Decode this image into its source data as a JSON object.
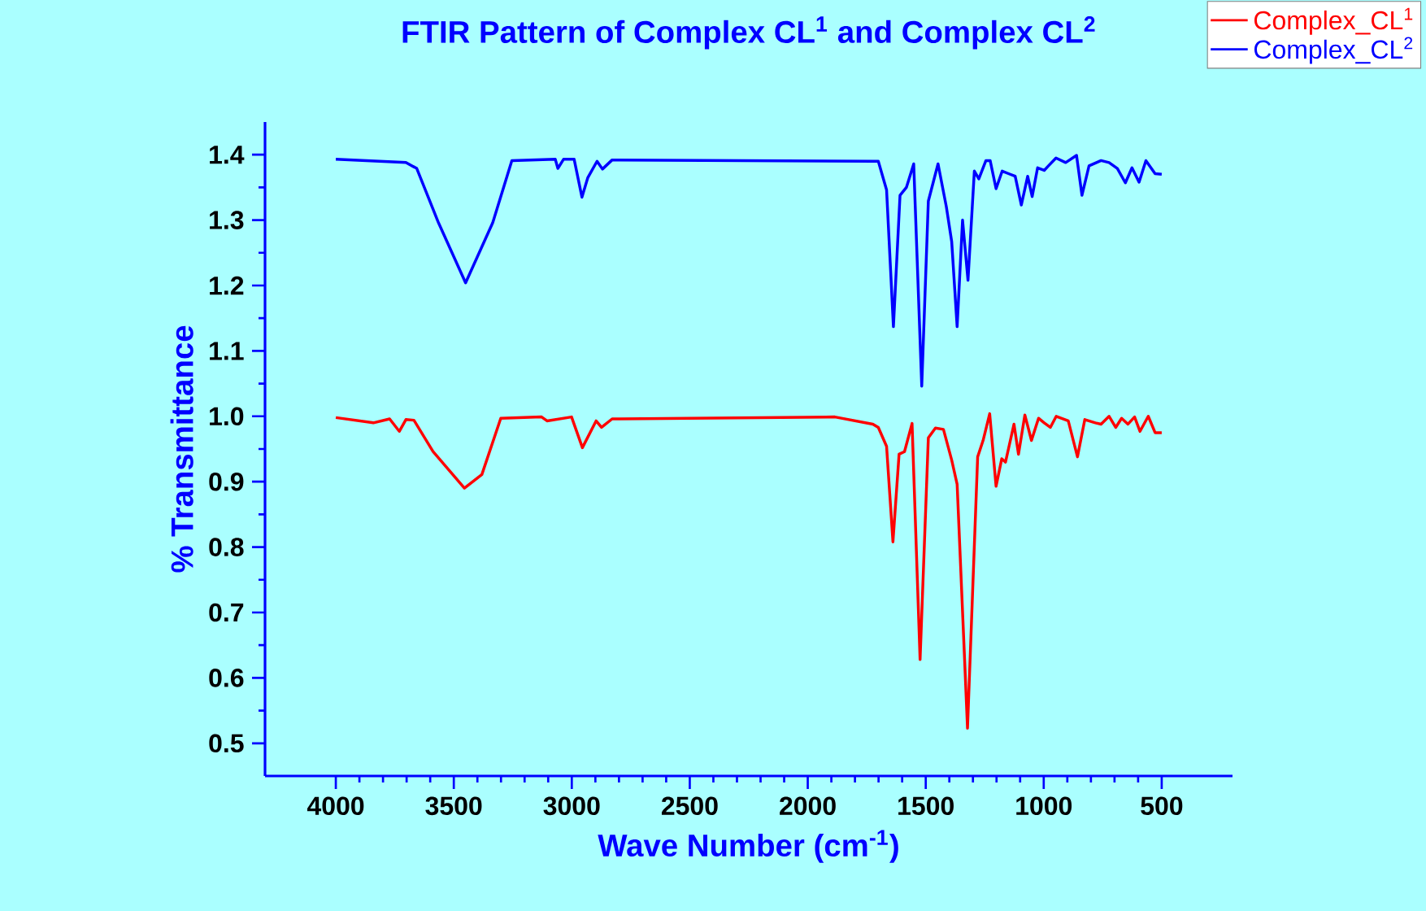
{
  "chart_data": {
    "type": "line",
    "title": "FTIR Pattern of Complex CL$^{1}$ and Complex CL$^{2}$",
    "xlabel": "Wave Number (cm$^{-1}$)",
    "ylabel": "% Transmittance",
    "xlim": [
      4300,
      200
    ],
    "xticks": [
      4000,
      3500,
      3000,
      2500,
      2000,
      1500,
      1000,
      500
    ],
    "ylim": [
      0.45,
      1.45
    ],
    "yticks": [
      0.5,
      0.6,
      0.7,
      0.8,
      0.9,
      {
        "value": 1.0,
        "label": "1.0"
      },
      1.1,
      1.2,
      1.3,
      1.4
    ],
    "grid": false,
    "legend": "top right",
    "marker": "none",
    "line_style": "solid",
    "series": [
      {
        "name": "Complex_CL$^{1}$",
        "color": "#ff0000",
        "x": [
          4000,
          3841,
          3772,
          3731,
          3703,
          3669,
          3588,
          3455,
          3381,
          3301,
          3128,
          3105,
          3001,
          2955,
          2897,
          2874,
          2829,
          1885,
          1724,
          1701,
          1666,
          1639,
          1613,
          1590,
          1558,
          1524,
          1489,
          1459,
          1425,
          1390,
          1367,
          1323,
          1280,
          1257,
          1229,
          1202,
          1178,
          1162,
          1126,
          1107,
          1080,
          1052,
          1022,
          998,
          972,
          947,
          896,
          857,
          826,
          781,
          757,
          723,
          695,
          670,
          643,
          615,
          592,
          557,
          528,
          500
        ],
        "values": [
          0.998,
          0.99,
          0.996,
          0.977,
          0.995,
          0.994,
          0.946,
          0.89,
          0.911,
          0.997,
          0.999,
          0.993,
          0.999,
          0.952,
          0.993,
          0.983,
          0.996,
          0.999,
          0.988,
          0.983,
          0.954,
          0.808,
          0.942,
          0.946,
          0.989,
          0.628,
          0.967,
          0.982,
          0.98,
          0.933,
          0.896,
          0.523,
          0.938,
          0.963,
          1.004,
          0.893,
          0.935,
          0.93,
          0.988,
          0.942,
          1.002,
          0.963,
          0.997,
          0.99,
          0.983,
          1.0,
          0.993,
          0.938,
          0.995,
          0.99,
          0.988,
          1.0,
          0.983,
          0.997,
          0.988,
          0.999,
          0.977,
          1.0,
          0.975,
          0.975
        ]
      },
      {
        "name": "Complex_CL$^{2}$",
        "color": "#0000ff",
        "x": [
          4000,
          3703,
          3657,
          3565,
          3450,
          3335,
          3254,
          3070,
          3059,
          3035,
          2990,
          2957,
          2932,
          2893,
          2870,
          2829,
          1724,
          1701,
          1666,
          1637,
          1609,
          1582,
          1551,
          1517,
          1489,
          1448,
          1413,
          1390,
          1367,
          1344,
          1321,
          1294,
          1275,
          1245,
          1227,
          1202,
          1176,
          1149,
          1121,
          1095,
          1068,
          1049,
          1026,
          998,
          980,
          948,
          907,
          861,
          838,
          808,
          757,
          723,
          688,
          654,
          626,
          596,
          567,
          528,
          500
        ],
        "values": [
          1.393,
          1.388,
          1.379,
          1.296,
          1.204,
          1.296,
          1.391,
          1.393,
          1.379,
          1.393,
          1.393,
          1.335,
          1.365,
          1.39,
          1.378,
          1.392,
          1.39,
          1.39,
          1.346,
          1.137,
          1.338,
          1.35,
          1.386,
          1.046,
          1.329,
          1.386,
          1.321,
          1.267,
          1.137,
          1.3,
          1.208,
          1.375,
          1.363,
          1.391,
          1.391,
          1.348,
          1.375,
          1.371,
          1.367,
          1.323,
          1.367,
          1.336,
          1.38,
          1.376,
          1.383,
          1.395,
          1.388,
          1.399,
          1.338,
          1.383,
          1.391,
          1.388,
          1.379,
          1.357,
          1.38,
          1.358,
          1.391,
          1.371,
          1.37
        ]
      }
    ]
  }
}
